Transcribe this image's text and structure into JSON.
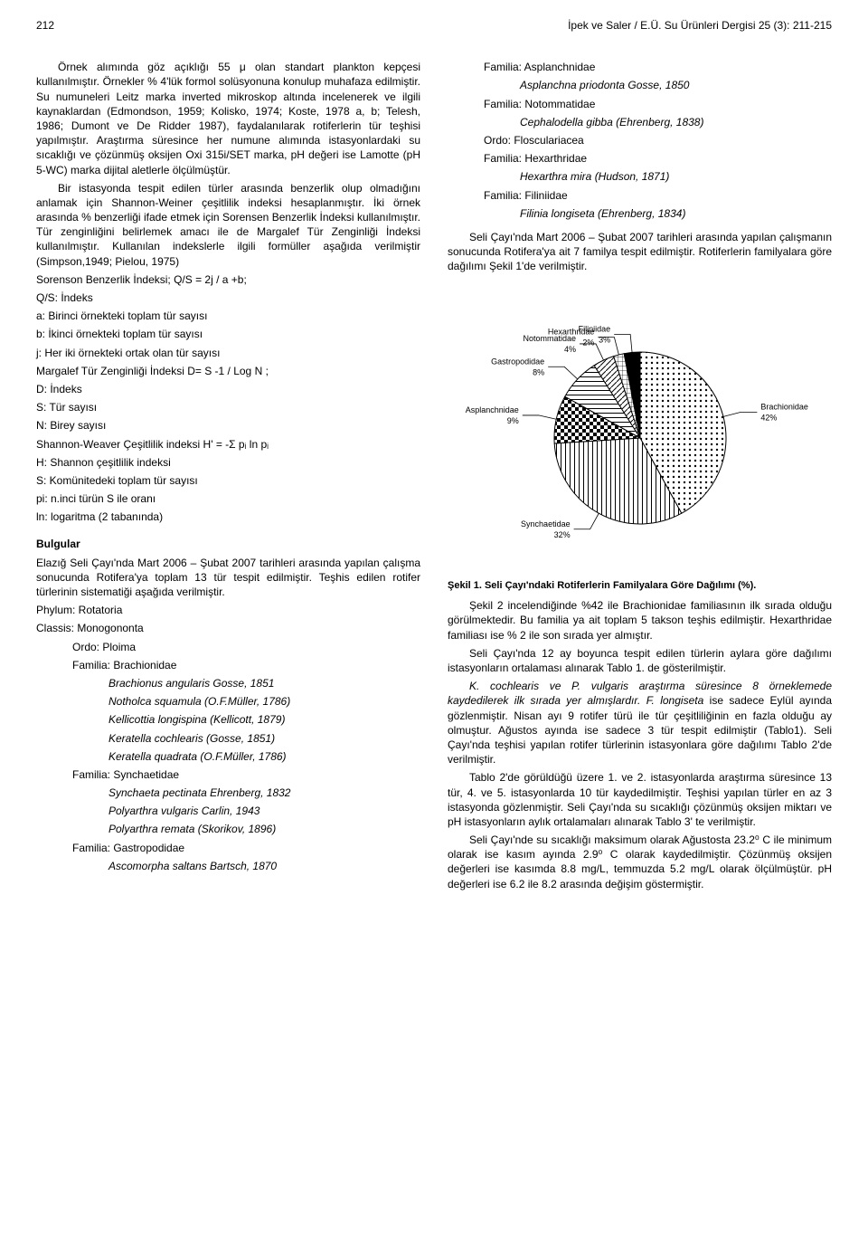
{
  "header": {
    "page_number": "212",
    "running_title": "İpek ve Saler / E.Ü. Su Ürünleri Dergisi 25 (3): 211-215"
  },
  "left": {
    "p1": "Örnek alımında göz açıklığı 55 μ olan standart plankton kepçesi kullanılmıştır. Örnekler % 4'lük formol solüsyonuna konulup muhafaza edilmiştir. Su numuneleri Leitz marka inverted mikroskop altında incelenerek ve ilgili kaynaklardan (Edmondson, 1959; Kolisko, 1974; Koste, 1978 a, b; Telesh, 1986; Dumont ve De Ridder 1987), faydalanılarak rotiferlerin tür teşhisi yapılmıştır. Araştırma süresince her numune alımında istasyonlardaki su sıcaklığı ve çözünmüş oksijen Oxi 315i/SET marka, pH değeri ise Lamotte (pH 5-WC) marka dijital aletlerle ölçülmüştür.",
    "p2": "Bir istasyonda tespit edilen türler arasında benzerlik olup olmadığını anlamak için Shannon-Weiner çeşitlilik indeksi hesaplanmıştır. İki örnek arasında % benzerliği ifade etmek için Sorensen Benzerlik İndeksi kullanılmıştır. Tür zenginliğini belirlemek amacı ile de Margalef Tür Zenginliği İndeksi kullanılmıştır. Kullanılan indekslerle ilgili formüller aşağıda verilmiştir (Simpson,1949; Pielou, 1975)",
    "f1": "Sorenson Benzerlik İndeksi;  Q/S = 2j / a +b;",
    "f2": "Q/S: İndeks",
    "f3": "a: Birinci örnekteki toplam tür sayısı",
    "f4": "b: İkinci örnekteki toplam tür sayısı",
    "f5": "j: Her iki örnekteki ortak olan tür sayısı",
    "f6": "Margalef Tür Zenginliği İndeksi D= S -1 / Log N ;",
    "f7": "D: İndeks",
    "f8": "S: Tür sayısı",
    "f9": "N: Birey sayısı",
    "f10": "Shannon-Weaver  Çeşitlilik indeksi H' = -Σ pᵢ ln pᵢ",
    "f11": "H: Shannon çeşitlilik indeksi",
    "f12": "S: Komünitedeki toplam tür sayısı",
    "f13": "pi: n.inci türün S ile oranı",
    "f14": "ln: logaritma (2 tabanında)",
    "bulgular": "Bulgular",
    "p3": "Elazığ Seli Çayı'nda Mart 2006 – Şubat 2007 tarihleri arasında yapılan çalışma sonucunda Rotifera'ya toplam 13 tür tespit edilmiştir. Teşhis edilen rotifer türlerinin sistematiği aşağıda verilmiştir.",
    "tax": {
      "t1": "Phylum: Rotatoria",
      "t2": "Classis: Monogononta",
      "t3": "Ordo: Ploima",
      "t4": "Familia: Brachionidae",
      "s1": "Brachionus angularis Gosse, 1851",
      "s2": "Notholca squamula (O.F.Müller, 1786)",
      "s3": "Kellicottia longispina (Kellicott, 1879)",
      "s4": "Keratella cochlearis (Gosse, 1851)",
      "s5": "Keratella quadrata (O.F.Müller, 1786)",
      "t5": "Familia: Synchaetidae",
      "s6": "Synchaeta pectinata Ehrenberg, 1832",
      "s7": "Polyarthra vulgaris Carlin, 1943",
      "s8": "Polyarthra remata (Skorikov, 1896)",
      "t6": "Familia: Gastropodidae",
      "s9": "Ascomorpha saltans Bartsch, 1870",
      "t7": "Familia: Asplanchnidae",
      "s10": "Asplanchna priodonta Gosse, 1850"
    }
  },
  "right": {
    "tax": {
      "r1": "Familia: Notommatidae",
      "r2": "Cephalodella gibba (Ehrenberg, 1838)",
      "r3": "Ordo: Flosculariacea",
      "r4": "Familia: Hexarthridae",
      "r5": "Hexarthra mira (Hudson, 1871)",
      "r6": "Familia: Filiniidae",
      "r7": "Filinia longiseta (Ehrenberg, 1834)"
    },
    "p4": "Seli Çayı'nda Mart 2006 – Şubat 2007 tarihleri arasında yapılan çalışmanın sonucunda Rotifera'ya ait 7 familya tespit edilmiştir. Rotiferlerin familyalara göre dağılımı Şekil 1'de verilmiştir.",
    "figcaption": "Şekil 1. Seli Çayı'ndaki Rotiferlerin Familyalara Göre Dağılımı (%).",
    "p5": "Şekil 2 incelendiğinde %42 ile Brachionidae familiasının ilk sırada olduğu görülmektedir. Bu familia ya ait toplam 5 takson teşhis edilmiştir. Hexarthridae familiası ise % 2 ile son sırada yer almıştır.",
    "p6": "Seli Çayı'nda 12 ay boyunca tespit edilen türlerin aylara göre dağılımı istasyonların ortalaması alınarak Tablo 1. de gösterilmiştir.",
    "p7a": "K. cochlearis ve P. vulgaris araştırma süresince 8 örneklemede kaydedilerek ilk sırada yer almışlardır. F. longiseta",
    "p7b": " ise sadece Eylül ayında gözlenmiştir. Nisan ayı 9 rotifer türü ile tür çeşitliliğinin en fazla olduğu ay olmuştur. Ağustos ayında ise sadece 3 tür tespit edilmiştir (Tablo1). Seli Çayı'nda teşhisi yapılan rotifer türlerinin istasyonlara göre dağılımı Tablo 2'de verilmiştir.",
    "p8": "Tablo 2'de görüldüğü üzere 1. ve 2. istasyonlarda araştırma süresince 13 tür, 4. ve 5. istasyonlarda 10 tür kaydedilmiştir. Teşhisi yapılan türler en az 3 istasyonda gözlenmiştir. Seli Çayı'nda su sıcaklığı çözünmüş oksijen miktarı ve pH istasyonların aylık ortalamaları alınarak Tablo 3' te verilmiştir.",
    "p9": "Seli Çayı'nde su sıcaklığı maksimum olarak Ağustosta 23.2⁰ C ile minimum olarak ise kasım ayında 2.9⁰ C olarak kaydedilmiştir. Çözünmüş oksijen değerleri ise kasımda 8.8 mg/L, temmuzda 5.2 mg/L olarak ölçülmüştür. pH değerleri ise 6.2 ile 8.2 arasında değişim göstermiştir."
  },
  "pie": {
    "type": "pie",
    "background_color": "#ffffff",
    "stroke_color": "#000000",
    "stroke_width": 1,
    "label_fontsize": 9,
    "slices": [
      {
        "label": "Brachionidae",
        "value": 42,
        "pattern": "dots"
      },
      {
        "label": "Synchaetidae",
        "value": 32,
        "pattern": "vlines"
      },
      {
        "label": "Asplanchnidae",
        "value": 9,
        "pattern": "checker"
      },
      {
        "label": "Gastropodidae",
        "value": 8,
        "pattern": "hlines"
      },
      {
        "label": "Notommatidae",
        "value": 4,
        "pattern": "diag"
      },
      {
        "label": "Hexarthridae",
        "value": 2,
        "pattern": "grid"
      },
      {
        "label": "Filiniidae",
        "value": 3,
        "pattern": "solid"
      }
    ]
  }
}
